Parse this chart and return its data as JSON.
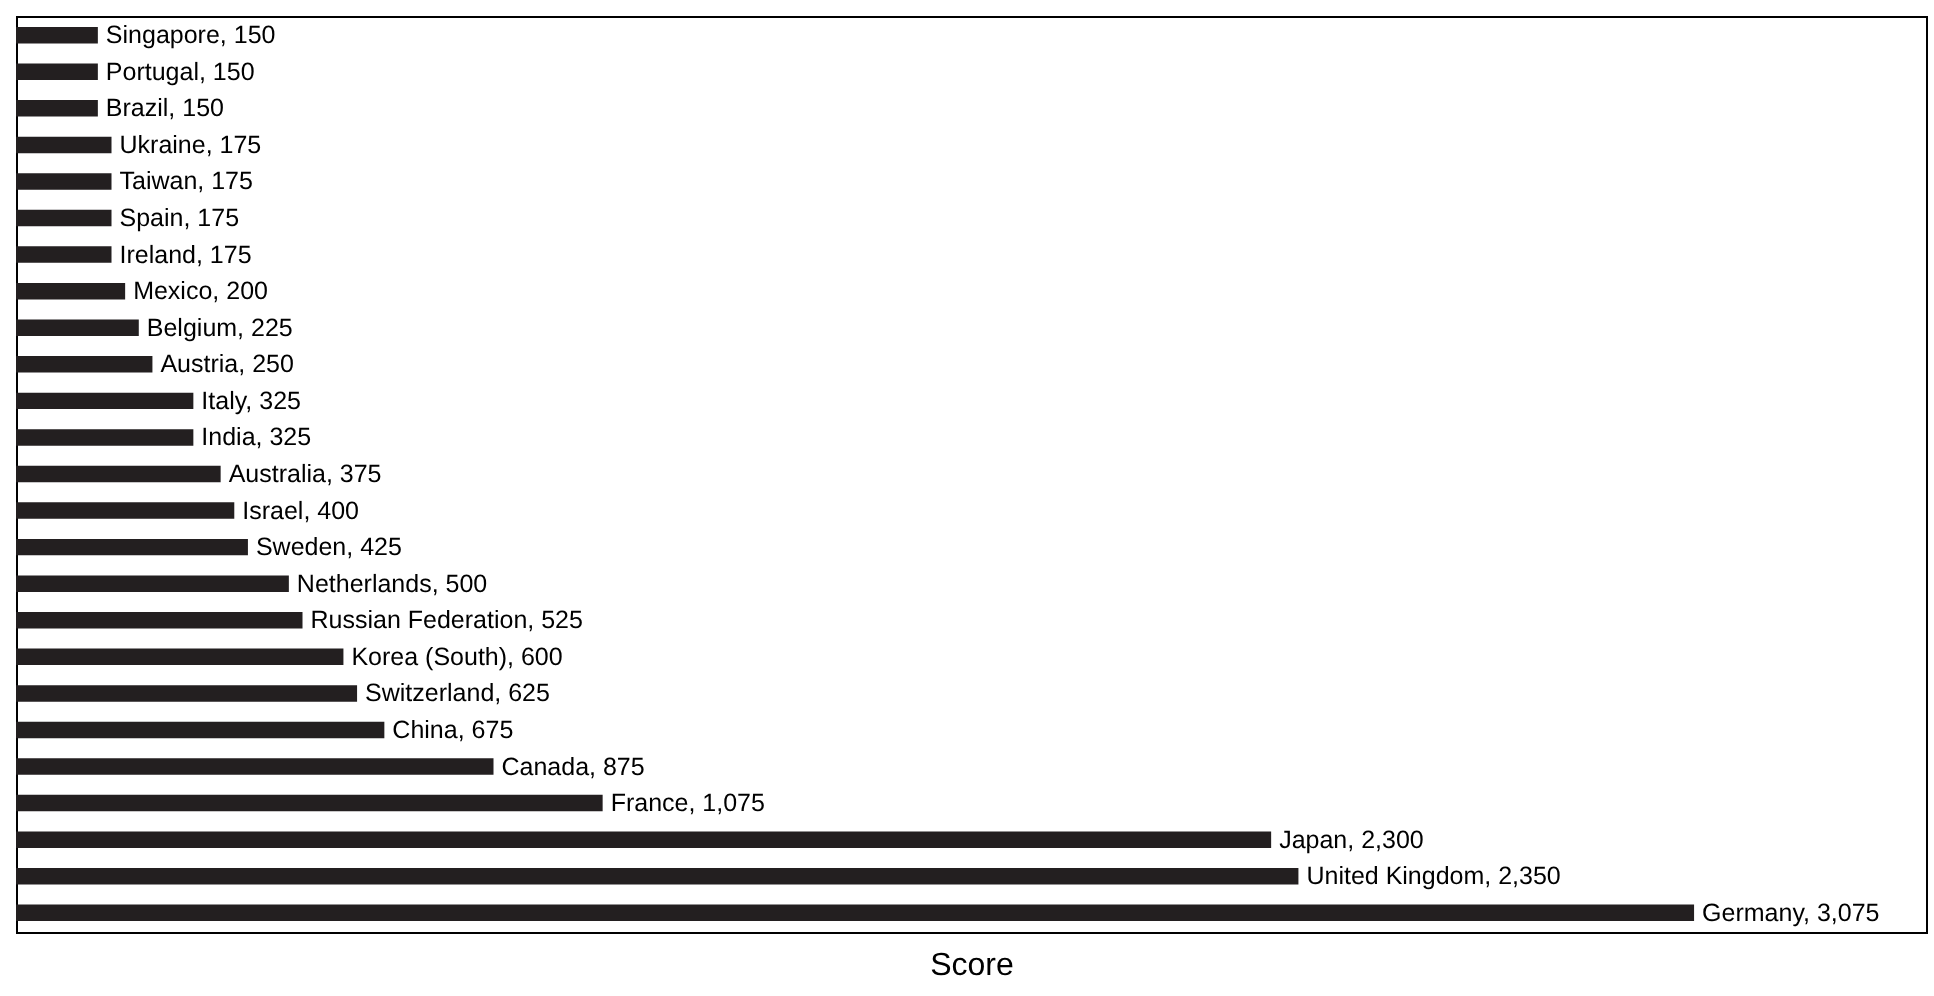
{
  "chart_data": {
    "type": "bar",
    "orientation": "horizontal",
    "xlabel": "Score",
    "xlim": [
      0,
      3500
    ],
    "categories": [
      null,
      null,
      null,
      null,
      null,
      null,
      null,
      null,
      null,
      null,
      null,
      null,
      null,
      null,
      null,
      null,
      null,
      null,
      null,
      null,
      null,
      null,
      null,
      null,
      null
    ],
    "values": [
      150,
      150,
      150,
      175,
      175,
      175,
      175,
      200,
      225,
      250,
      325,
      325,
      375,
      400,
      425,
      500,
      525,
      600,
      625,
      675,
      875,
      1075,
      2300,
      2350,
      3075
    ],
    "value_labels": [
      "Singapore, 150",
      "Portugal, 150",
      "Brazil, 150",
      "Ukraine, 175",
      "Taiwan, 175",
      "Spain, 175",
      "Ireland, 175",
      "Mexico, 200",
      "Belgium, 225",
      "Austria, 250",
      "Italy, 325",
      "India, 325",
      "Australia, 375",
      "Israel, 400",
      "Sweden, 425",
      "Netherlands, 500",
      "Russian Federation, 525",
      "Korea (South), 600",
      "Switzerland, 625",
      "China, 675",
      "Canada, 875",
      "France, 1,075",
      "Japan, 2,300",
      "United Kingdom, 2,350",
      "Germany, 3,075"
    ],
    "color": "#231f20"
  }
}
